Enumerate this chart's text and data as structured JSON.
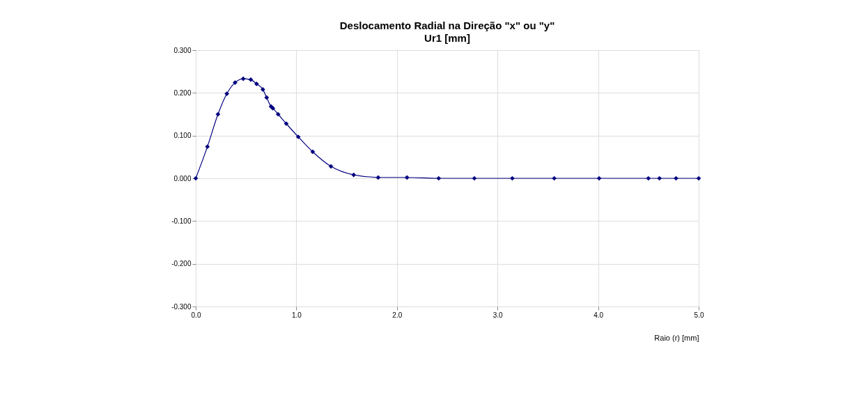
{
  "chart_data": {
    "type": "line",
    "title": "Deslocamento Radial na Direção \"x\"  ou \"y\"",
    "subtitle": "Ur1 [mm]",
    "xlabel": "Raio (r) [mm]",
    "series": [
      {
        "color": "#000080",
        "x": [
          0,
          0.116,
          0.221,
          0.309,
          0.391,
          0.472,
          0.547,
          0.605,
          0.667,
          0.705,
          0.749,
          0.767,
          0.819,
          0.9,
          1.019,
          1.163,
          1.344,
          1.57,
          1.814,
          2.1,
          2.415,
          2.77,
          3.147,
          3.564,
          4.01,
          4.5,
          4.61,
          4.775,
          5.0
        ],
        "values": [
          0,
          0.074,
          0.15,
          0.198,
          0.224,
          0.233,
          0.231,
          0.221,
          0.208,
          0.189,
          0.168,
          0.164,
          0.15,
          0.128,
          0.097,
          0.062,
          0.028,
          0.008,
          0.002,
          0.002,
          0,
          0,
          0,
          0,
          0,
          0,
          0,
          0,
          0
        ]
      }
    ],
    "xlim": [
      0,
      5
    ],
    "xticks": [
      {
        "value": 0,
        "label": "0.0"
      },
      {
        "value": 1,
        "label": "1.0"
      },
      {
        "value": 2,
        "label": "2.0"
      },
      {
        "value": 3,
        "label": "3.0"
      },
      {
        "value": 4,
        "label": "4.0"
      },
      {
        "value": 5,
        "label": "5.0"
      }
    ],
    "ylim": [
      -0.3,
      0.3
    ],
    "yticks": [
      {
        "value": -0.3,
        "label": "-0.300"
      },
      {
        "value": -0.2,
        "label": "-0.200"
      },
      {
        "value": -0.1,
        "label": "-0.100"
      },
      {
        "value": 0,
        "label": "0.000"
      },
      {
        "value": 0.1,
        "label": "0.100"
      },
      {
        "value": 0.2,
        "label": "0.200"
      },
      {
        "value": 0.3,
        "label": "0.300"
      }
    ],
    "grid": true,
    "marker": "diamond",
    "line_style": "solid"
  }
}
